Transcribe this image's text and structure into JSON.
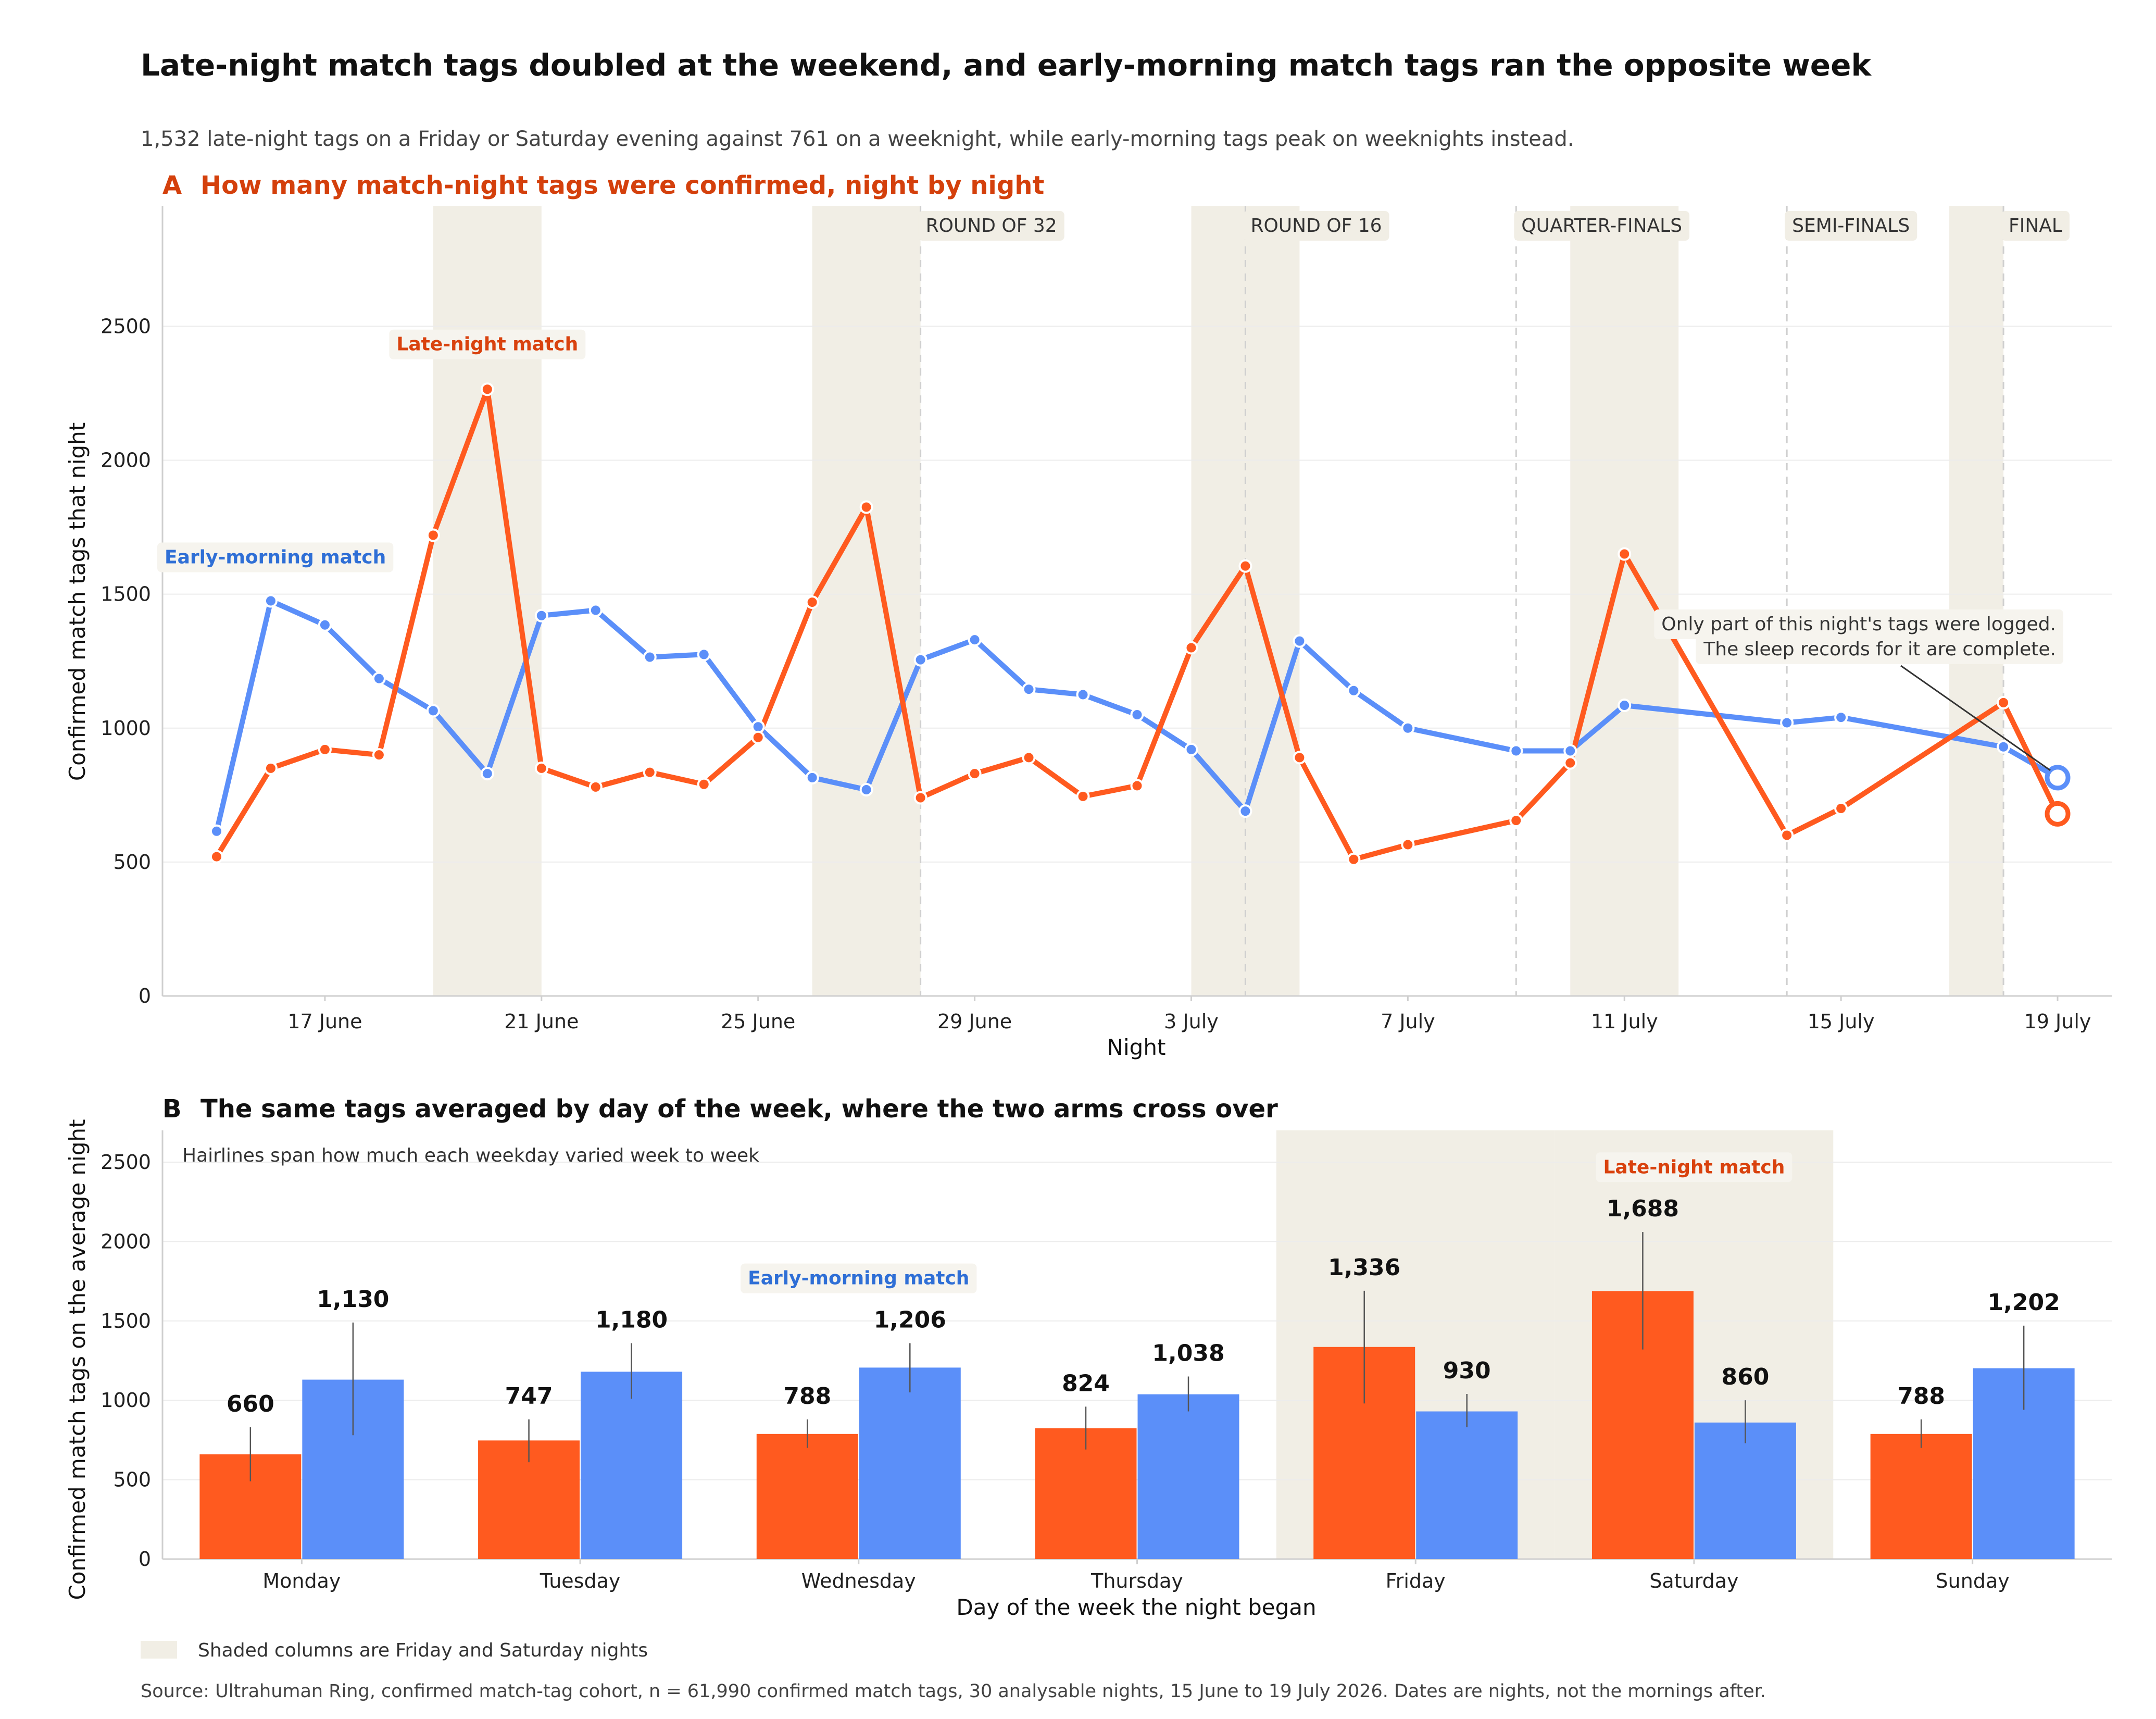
{
  "header": {
    "title": "Late-night match tags doubled at the weekend, and early-morning match tags ran the opposite week",
    "subtitle": "1,532 late-night tags on a Friday or Saturday evening against 761 on a weeknight, while early-morning tags peak on weeknights instead."
  },
  "colors": {
    "late": "#FF5A1F",
    "early": "#5B8FF9",
    "shade": "#F1EEE5",
    "late_label": "#D9420E",
    "early_label": "#2F6FD6",
    "panel_title": "#D4400C"
  },
  "legend": {
    "shade_text": "Shaded columns are Friday and Saturday nights"
  },
  "source": "Source: Ultrahuman Ring, confirmed match-tag cohort, n = 61,990 confirmed match tags, 30 analysable nights, 15 June to 19 July 2026. Dates are nights, not the mornings after.",
  "chart_data": [
    {
      "type": "line",
      "panel_letter": "A",
      "title": "How many match-night tags were confirmed, night by night",
      "xlabel": "Night",
      "ylabel": "Confirmed match tags that night",
      "ylim": [
        0,
        2950
      ],
      "y_ticks": [
        0,
        500,
        1000,
        1500,
        2000,
        2500
      ],
      "x_ticks": [
        {
          "date": "2026-06-17",
          "label": "17 June"
        },
        {
          "date": "2026-06-21",
          "label": "21 June"
        },
        {
          "date": "2026-06-25",
          "label": "25 June"
        },
        {
          "date": "2026-06-29",
          "label": "29 June"
        },
        {
          "date": "2026-07-03",
          "label": "3 July"
        },
        {
          "date": "2026-07-07",
          "label": "7 July"
        },
        {
          "date": "2026-07-11",
          "label": "11 July"
        },
        {
          "date": "2026-07-15",
          "label": "15 July"
        },
        {
          "date": "2026-07-19",
          "label": "19 July"
        }
      ],
      "x_range": [
        "2026-06-14",
        "2026-07-20"
      ],
      "shaded_nights": [
        [
          "2026-06-19",
          "2026-06-21"
        ],
        [
          "2026-06-26",
          "2026-06-28"
        ],
        [
          "2026-07-03",
          "2026-07-05"
        ],
        [
          "2026-07-10",
          "2026-07-12"
        ],
        [
          "2026-07-17",
          "2026-07-18"
        ]
      ],
      "stages": [
        {
          "date": "2026-06-28",
          "label": "ROUND OF 32"
        },
        {
          "date": "2026-07-04",
          "label": "ROUND OF 16"
        },
        {
          "date": "2026-07-09",
          "label": "QUARTER-FINALS"
        },
        {
          "date": "2026-07-14",
          "label": "SEMI-FINALS"
        },
        {
          "date": "2026-07-18",
          "label": "FINAL"
        }
      ],
      "series": [
        {
          "name": "Late-night match",
          "label_at": {
            "date": "2026-06-20",
            "y": 2410
          },
          "points": [
            [
              "2026-06-15",
              520
            ],
            [
              "2026-06-16",
              850
            ],
            [
              "2026-06-17",
              920
            ],
            [
              "2026-06-18",
              900
            ],
            [
              "2026-06-19",
              1720
            ],
            [
              "2026-06-20",
              2265
            ],
            [
              "2026-06-21",
              850
            ],
            [
              "2026-06-22",
              780
            ],
            [
              "2026-06-23",
              835
            ],
            [
              "2026-06-24",
              790
            ],
            [
              "2026-06-25",
              965
            ],
            [
              "2026-06-26",
              1470
            ],
            [
              "2026-06-27",
              1825
            ],
            [
              "2026-06-28",
              740
            ],
            [
              "2026-06-29",
              830
            ],
            [
              "2026-06-30",
              890
            ],
            [
              "2026-07-01",
              745
            ],
            [
              "2026-07-02",
              785
            ],
            [
              "2026-07-03",
              1300
            ],
            [
              "2026-07-04",
              1605
            ],
            [
              "2026-07-05",
              890
            ],
            [
              "2026-07-06",
              510
            ],
            [
              "2026-07-07",
              565
            ],
            [
              "2026-07-09",
              655
            ],
            [
              "2026-07-10",
              870
            ],
            [
              "2026-07-11",
              1650
            ],
            [
              "2026-07-14",
              600
            ],
            [
              "2026-07-15",
              700
            ],
            [
              "2026-07-18",
              1095
            ],
            [
              "2026-07-19",
              680
            ]
          ]
        },
        {
          "name": "Early-morning match",
          "label_at": {
            "date": "2026-06-16",
            "y": 1615
          },
          "points": [
            [
              "2026-06-15",
              615
            ],
            [
              "2026-06-16",
              1475
            ],
            [
              "2026-06-17",
              1385
            ],
            [
              "2026-06-18",
              1185
            ],
            [
              "2026-06-19",
              1065
            ],
            [
              "2026-06-20",
              830
            ],
            [
              "2026-06-21",
              1420
            ],
            [
              "2026-06-22",
              1440
            ],
            [
              "2026-06-23",
              1265
            ],
            [
              "2026-06-24",
              1275
            ],
            [
              "2026-06-25",
              1005
            ],
            [
              "2026-06-26",
              815
            ],
            [
              "2026-06-27",
              770
            ],
            [
              "2026-06-28",
              1255
            ],
            [
              "2026-06-29",
              1330
            ],
            [
              "2026-06-30",
              1145
            ],
            [
              "2026-07-01",
              1125
            ],
            [
              "2026-07-02",
              1050
            ],
            [
              "2026-07-03",
              920
            ],
            [
              "2026-07-04",
              690
            ],
            [
              "2026-07-05",
              1325
            ],
            [
              "2026-07-06",
              1140
            ],
            [
              "2026-07-07",
              1000
            ],
            [
              "2026-07-09",
              915
            ],
            [
              "2026-07-10",
              915
            ],
            [
              "2026-07-11",
              1085
            ],
            [
              "2026-07-14",
              1020
            ],
            [
              "2026-07-15",
              1040
            ],
            [
              "2026-07-18",
              930
            ],
            [
              "2026-07-19",
              815
            ]
          ]
        }
      ],
      "annotation": {
        "lines": [
          "Only part of this night's tags were logged.",
          "The sleep records for it are complete."
        ],
        "date": "2026-07-19",
        "y": 815
      }
    },
    {
      "type": "bar",
      "panel_letter": "B",
      "title": "The same tags averaged by day of the week, where the two arms cross over",
      "note": "Hairlines span how much each weekday varied week to week",
      "xlabel": "Day of the week the night began",
      "ylabel": "Confirmed match tags on the average night",
      "ylim": [
        0,
        2700
      ],
      "y_ticks": [
        0,
        500,
        1000,
        1500,
        2000,
        2500
      ],
      "categories": [
        "Monday",
        "Tuesday",
        "Wednesday",
        "Thursday",
        "Friday",
        "Saturday",
        "Sunday"
      ],
      "shaded_categories": [
        "Friday",
        "Saturday"
      ],
      "series": [
        {
          "name": "Late-night match",
          "label_category": "Saturday",
          "label_y": 2430,
          "values": [
            660,
            747,
            788,
            824,
            1336,
            1688,
            788
          ],
          "value_labels": [
            "660",
            "747",
            "788",
            "824",
            "1,336",
            "1,688",
            "788"
          ],
          "ranges": [
            [
              490,
              830
            ],
            [
              610,
              880
            ],
            [
              700,
              880
            ],
            [
              690,
              960
            ],
            [
              980,
              1690
            ],
            [
              1320,
              2060
            ],
            [
              700,
              880
            ]
          ]
        },
        {
          "name": "Early-morning match",
          "label_category": "Wednesday",
          "label_y": 1730,
          "values": [
            1130,
            1180,
            1206,
            1038,
            930,
            860,
            1202
          ],
          "value_labels": [
            "1,130",
            "1,180",
            "1,206",
            "1,038",
            "930",
            "860",
            "1,202"
          ],
          "ranges": [
            [
              780,
              1490
            ],
            [
              1010,
              1360
            ],
            [
              1050,
              1360
            ],
            [
              930,
              1150
            ],
            [
              830,
              1040
            ],
            [
              730,
              1000
            ],
            [
              940,
              1470
            ]
          ]
        }
      ]
    }
  ]
}
